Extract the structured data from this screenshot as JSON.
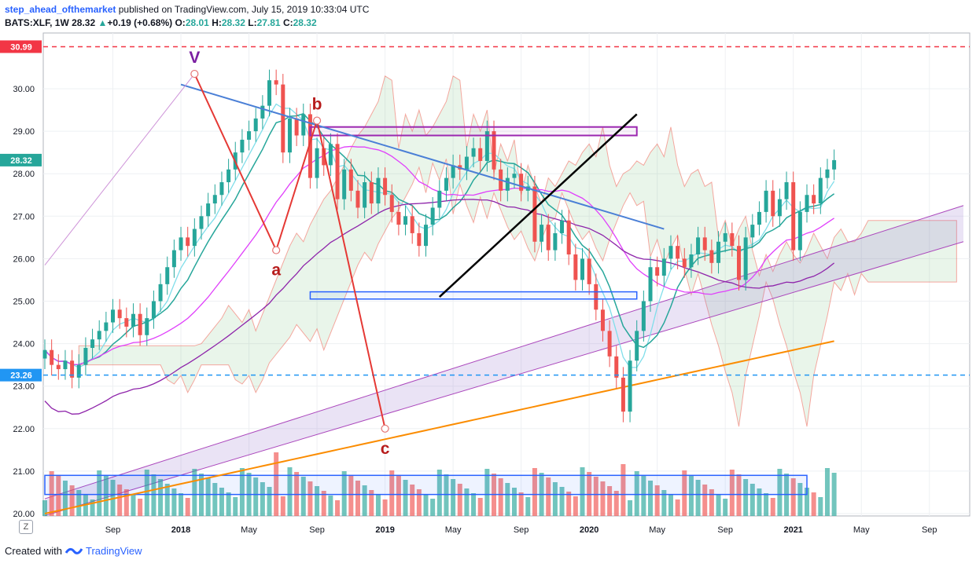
{
  "header": {
    "author": "step_ahead_ofthemarket",
    "published": "published on TradingView.com, July 15, 2019 10:33:04 UTC",
    "symbol": "BATS:XLF, 1W",
    "price": "28.32",
    "change": "+0.19 (+0.68%)",
    "o_label": "O:",
    "o_val": "28.01",
    "h_label": "H:",
    "h_val": "28.32",
    "l_label": "L:",
    "l_val": "27.81",
    "c_label": "C:",
    "c_val": "28.32"
  },
  "footer": {
    "created_with": "Created with",
    "brand": "TradingView"
  },
  "z_button": "Z",
  "chart_data": {
    "type": "candlestick",
    "symbol": "BATS:XLF",
    "interval": "1W",
    "y_range": [
      20.0,
      31.1
    ],
    "y_ticks": [
      20.0,
      21.0,
      22.0,
      23.0,
      24.0,
      25.0,
      26.0,
      27.0,
      28.0,
      29.0,
      30.0
    ],
    "y_tick_labels": [
      "20.00",
      "21.00",
      "22.00",
      "23.00",
      "24.00",
      "25.00",
      "26.00",
      "27.00",
      "28.00",
      "29.00",
      "30.00"
    ],
    "x_range": [
      0,
      135
    ],
    "x_ticks": [
      {
        "label": "Sep",
        "week": 10
      },
      {
        "label": "2018",
        "week": 20
      },
      {
        "label": "May",
        "week": 30
      },
      {
        "label": "Sep",
        "week": 40
      },
      {
        "label": "2019",
        "week": 50
      },
      {
        "label": "May",
        "week": 60
      },
      {
        "label": "Sep",
        "week": 70
      },
      {
        "label": "2020",
        "week": 80
      },
      {
        "label": "May",
        "week": 90
      },
      {
        "label": "Sep",
        "week": 100
      },
      {
        "label": "2021",
        "week": 110
      },
      {
        "label": "May",
        "week": 120
      },
      {
        "label": "Sep",
        "week": 130
      }
    ],
    "price_labels": [
      {
        "label": "30.99",
        "value": 30.99,
        "color": "#f23645"
      },
      {
        "label": "28.32",
        "value": 28.32,
        "color": "#26a69a"
      },
      {
        "label": "23.26",
        "value": 23.26,
        "color": "#2196f3"
      }
    ],
    "horizontal_lines": [
      {
        "value": 30.99,
        "color": "#f23645"
      },
      {
        "value": 23.26,
        "color": "#2196f3"
      }
    ],
    "closes": [
      23.85,
      23.5,
      23.4,
      23.6,
      23.2,
      23.5,
      23.9,
      24.1,
      24.3,
      24.5,
      24.8,
      24.6,
      24.4,
      24.7,
      24.2,
      24.6,
      25.0,
      25.4,
      25.8,
      26.2,
      26.5,
      26.3,
      26.7,
      27.0,
      27.3,
      27.5,
      27.8,
      28.1,
      28.5,
      28.8,
      29.0,
      29.3,
      29.6,
      30.2,
      30.1,
      28.5,
      29.3,
      28.9,
      29.4,
      27.9,
      28.6,
      28.2,
      28.7,
      27.4,
      28.1,
      27.6,
      27.2,
      27.8,
      27.3,
      27.9,
      27.5,
      27.1,
      26.8,
      27.0,
      26.6,
      26.3,
      26.8,
      27.2,
      27.6,
      27.9,
      28.2,
      28.1,
      28.4,
      28.6,
      28.3,
      29.0,
      28.1,
      27.6,
      27.9,
      28.0,
      27.6,
      27.7,
      26.4,
      26.8,
      26.2,
      26.6,
      26.9,
      26.1,
      25.5,
      26.0,
      25.4,
      24.8,
      24.3,
      23.7,
      23.2,
      22.4,
      23.6,
      24.3,
      25.0,
      25.8,
      25.6,
      26.0,
      26.3,
      26.0,
      25.8,
      26.1,
      26.5,
      26.2,
      25.9,
      26.4,
      26.6,
      26.3,
      25.5,
      26.5,
      26.8,
      27.1,
      27.6,
      27.0,
      27.4,
      27.8,
      26.2,
      27.1,
      27.5,
      27.3,
      27.9,
      28.1,
      28.32
    ],
    "drawings": {
      "triangle_upper_line": {
        "from": [
          20.0,
          30.1
        ],
        "to": [
          91.0,
          26.7
        ],
        "color": "#4a7fd6"
      },
      "triangle_lower_line": {
        "from": [
          58.0,
          25.1
        ],
        "to": [
          87.0,
          29.4
        ],
        "color": "#000000"
      },
      "resistance_box": {
        "x": [
          39.0,
          87.0
        ],
        "y": [
          28.9,
          29.1
        ],
        "color": "#9c27b0"
      },
      "support_box": {
        "x": [
          39.0,
          87.0
        ],
        "y": [
          25.05,
          25.22
        ],
        "color": "#2962ff"
      },
      "volume_box": {
        "x": [
          0.0,
          112.0
        ],
        "y": [
          20.45,
          20.9
        ],
        "color": "#2962ff"
      },
      "channel": {
        "lower": [
          [
            0.0,
            19.95
          ],
          [
            135.0,
            26.4
          ]
        ],
        "upper": [
          [
            0.0,
            20.35
          ],
          [
            135.0,
            27.25
          ]
        ],
        "color": "#ab47bc"
      },
      "waves": [
        {
          "label": "V",
          "week": 22,
          "price": 30.35,
          "color": "#7b1fa2"
        },
        {
          "label": "a",
          "week": 34,
          "price": 26.2,
          "color": "#b71c1c"
        },
        {
          "label": "b",
          "week": 40,
          "price": 29.25,
          "color": "#b71c1c"
        },
        {
          "label": "c",
          "week": 50,
          "price": 22.0,
          "color": "#b71c1c"
        }
      ]
    }
  }
}
